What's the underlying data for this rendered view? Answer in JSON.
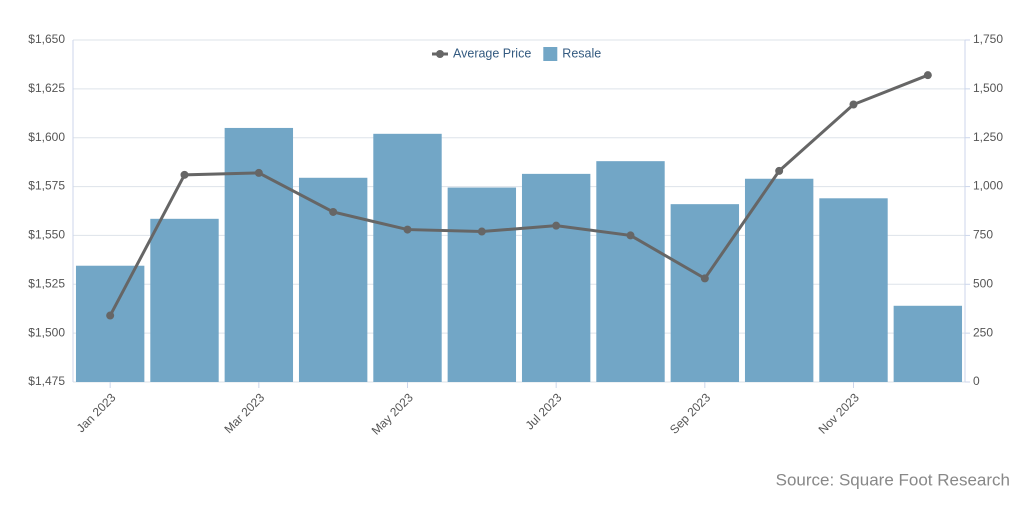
{
  "chart_data": {
    "type": "bar-line",
    "categories": [
      "Jan 2023",
      null,
      "Mar 2023",
      null,
      "May 2023",
      null,
      "Jul 2023",
      null,
      "Sep 2023",
      null,
      "Nov 2023",
      null
    ],
    "series": [
      {
        "name": "Average Price",
        "type": "line",
        "color": "#666666",
        "axis": "y",
        "values": [
          1509,
          1581,
          1582,
          1562,
          1553,
          1552,
          1555,
          1550,
          1528,
          1583,
          1617,
          1632
        ]
      },
      {
        "name": "Resale",
        "type": "bar",
        "color": "#72a6c6",
        "axis": "y2",
        "values": [
          595,
          835,
          1300,
          1045,
          1270,
          995,
          1065,
          1130,
          910,
          1040,
          940,
          390
        ]
      }
    ],
    "ylim": [
      1475,
      1650
    ],
    "yticks": [
      {
        "value": 1475,
        "label": "$1,475"
      },
      {
        "value": 1500,
        "label": "$1,500"
      },
      {
        "value": 1525,
        "label": "$1,525"
      },
      {
        "value": 1550,
        "label": "$1,550"
      },
      {
        "value": 1575,
        "label": "$1,575"
      },
      {
        "value": 1600,
        "label": "$1,600"
      },
      {
        "value": 1625,
        "label": "$1,625"
      },
      {
        "value": 1650,
        "label": "$1,650"
      }
    ],
    "y2lim": [
      0,
      1750
    ],
    "y2ticks": [
      0,
      250,
      500,
      750,
      {
        "value": 1000,
        "label": "1,000"
      },
      {
        "value": 1250,
        "label": "1,250"
      },
      {
        "value": 1500,
        "label": "1,500"
      },
      {
        "value": 1750,
        "label": "1,750"
      }
    ],
    "grid": true,
    "legend": "top",
    "source": "Source: Square Foot Research"
  }
}
